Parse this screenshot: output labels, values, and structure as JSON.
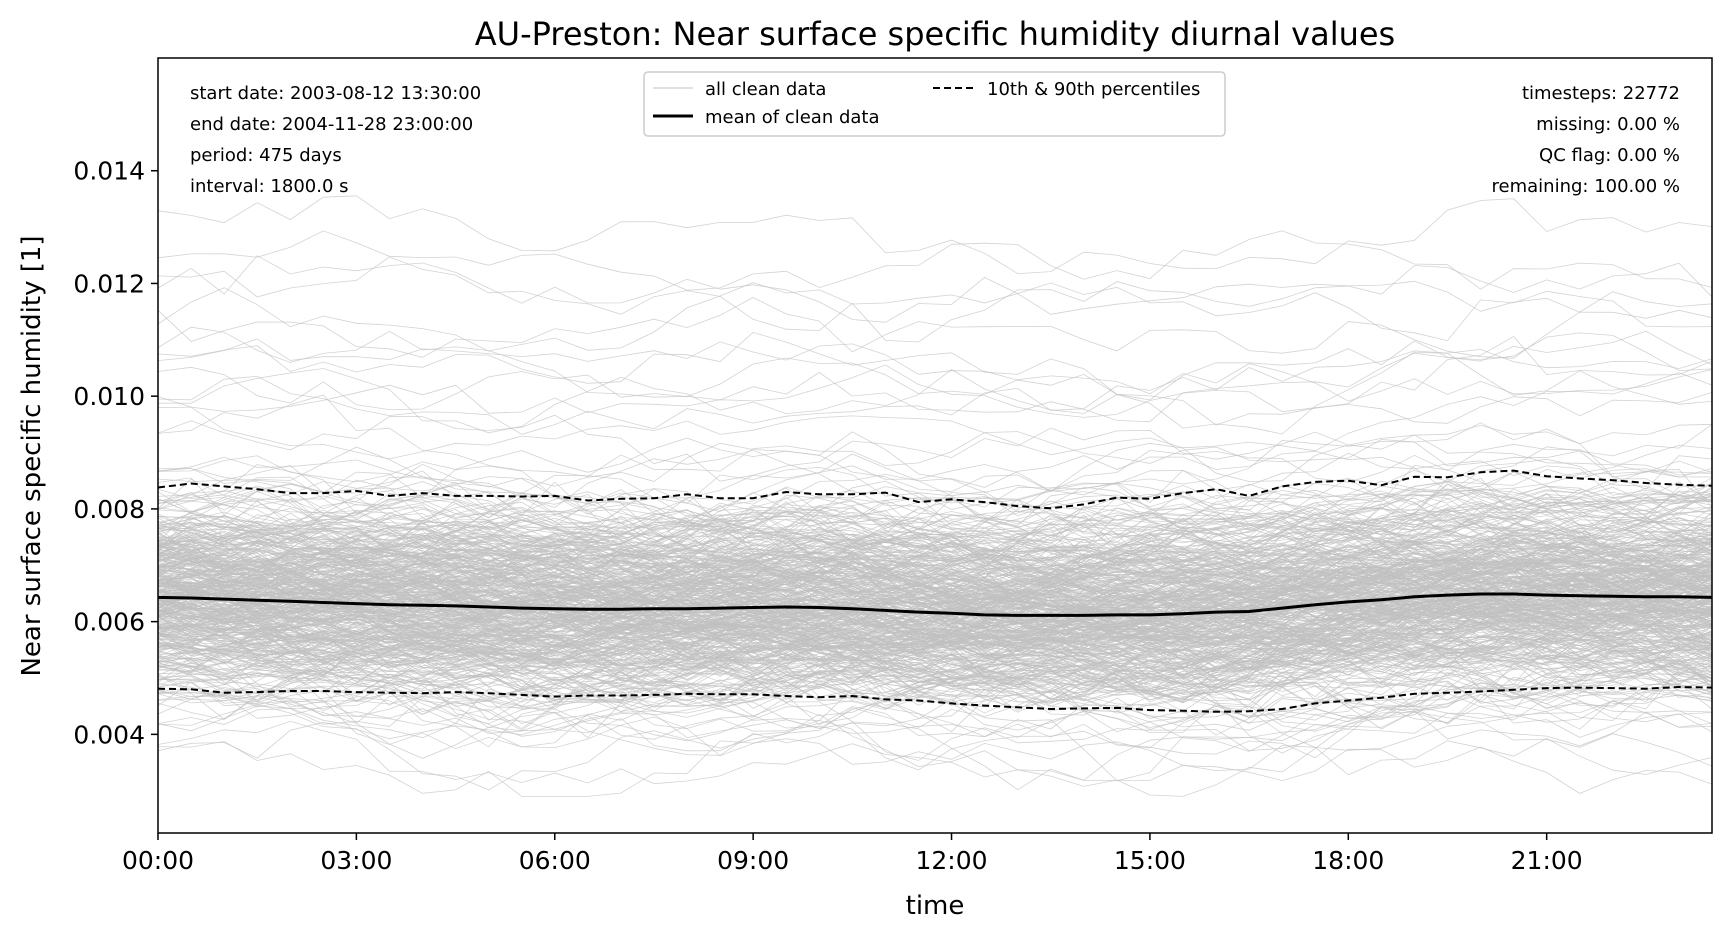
{
  "chart_data": {
    "type": "line",
    "title": "AU-Preston: Near surface specific humidity diurnal values",
    "xlabel": "time",
    "ylabel": "Near surface specific humidity [1]",
    "xlim": [
      0,
      23.5
    ],
    "ylim": [
      0.00225,
      0.016
    ],
    "grid": false,
    "x_ticks": [
      {
        "value": 0,
        "label": "00:00"
      },
      {
        "value": 3,
        "label": "03:00"
      },
      {
        "value": 6,
        "label": "06:00"
      },
      {
        "value": 9,
        "label": "09:00"
      },
      {
        "value": 12,
        "label": "12:00"
      },
      {
        "value": 15,
        "label": "15:00"
      },
      {
        "value": 18,
        "label": "18:00"
      },
      {
        "value": 21,
        "label": "21:00"
      }
    ],
    "y_ticks": [
      {
        "value": 0.004,
        "label": "0.004"
      },
      {
        "value": 0.006,
        "label": "0.006"
      },
      {
        "value": 0.008,
        "label": "0.008"
      },
      {
        "value": 0.01,
        "label": "0.010"
      },
      {
        "value": 0.012,
        "label": "0.012"
      },
      {
        "value": 0.014,
        "label": "0.014"
      }
    ],
    "legend": {
      "placement": "top-center",
      "entries": [
        {
          "label": "all clean data",
          "color": "#c0c0c0",
          "style": "thin"
        },
        {
          "label": "mean of clean data",
          "color": "#000000",
          "style": "solid"
        },
        {
          "label": "10th & 90th percentiles",
          "color": "#000000",
          "style": "dashed"
        }
      ]
    },
    "info_left": [
      "start date: 2003-08-12 13:30:00",
      "end date: 2004-11-28 23:00:00",
      "period: 475 days",
      "interval: 1800.0 s"
    ],
    "info_right": [
      "timesteps: 22772",
      "missing: 0.00 %",
      "QC flag: 0.00 %",
      "remaining: 100.00 %"
    ],
    "background_lines": {
      "count": 475,
      "color": "#c0c0c0",
      "seed": 7
    },
    "x": [
      0,
      0.5,
      1,
      1.5,
      2,
      2.5,
      3,
      3.5,
      4,
      4.5,
      5,
      5.5,
      6,
      6.5,
      7,
      7.5,
      8,
      8.5,
      9,
      9.5,
      10,
      10.5,
      11,
      11.5,
      12,
      12.5,
      13,
      13.5,
      14,
      14.5,
      15,
      15.5,
      16,
      16.5,
      17,
      17.5,
      18,
      18.5,
      19,
      19.5,
      20,
      20.5,
      21,
      21.5,
      22,
      22.5,
      23,
      23.5
    ],
    "series": [
      {
        "name": "mean of clean data",
        "color": "#000000",
        "style": "solid",
        "values": [
          0.00643,
          0.00642,
          0.0064,
          0.00638,
          0.00636,
          0.00634,
          0.00632,
          0.0063,
          0.00629,
          0.00628,
          0.00626,
          0.00624,
          0.00623,
          0.00622,
          0.00622,
          0.00623,
          0.00623,
          0.00624,
          0.00625,
          0.00626,
          0.00625,
          0.00623,
          0.0062,
          0.00617,
          0.00615,
          0.00612,
          0.00611,
          0.00611,
          0.00611,
          0.00612,
          0.00612,
          0.00614,
          0.00617,
          0.00618,
          0.00624,
          0.0063,
          0.00635,
          0.00639,
          0.00644,
          0.00647,
          0.00649,
          0.00649,
          0.00647,
          0.00646,
          0.00645,
          0.00644,
          0.00644,
          0.00643
        ]
      },
      {
        "name": "10th percentile",
        "color": "#000000",
        "style": "dashed",
        "values": [
          0.00481,
          0.0048,
          0.00474,
          0.00475,
          0.00477,
          0.00477,
          0.00475,
          0.00474,
          0.00473,
          0.00475,
          0.00473,
          0.0047,
          0.00467,
          0.00469,
          0.00469,
          0.0047,
          0.00472,
          0.00471,
          0.00471,
          0.00468,
          0.00466,
          0.00468,
          0.00462,
          0.0046,
          0.00455,
          0.00451,
          0.00448,
          0.00445,
          0.00446,
          0.00447,
          0.00443,
          0.00442,
          0.0044,
          0.00441,
          0.00445,
          0.00455,
          0.0046,
          0.00465,
          0.00472,
          0.00474,
          0.00476,
          0.00479,
          0.00482,
          0.00483,
          0.00482,
          0.00481,
          0.00484,
          0.00483
        ]
      },
      {
        "name": "90th percentile",
        "color": "#000000",
        "style": "dashed",
        "values": [
          0.00838,
          0.00845,
          0.0084,
          0.00835,
          0.00828,
          0.00828,
          0.00832,
          0.00823,
          0.00828,
          0.00823,
          0.00823,
          0.00822,
          0.00823,
          0.00815,
          0.00818,
          0.00819,
          0.00826,
          0.00819,
          0.00819,
          0.0083,
          0.00826,
          0.00826,
          0.00829,
          0.00812,
          0.00817,
          0.00812,
          0.00805,
          0.00801,
          0.00808,
          0.0082,
          0.00818,
          0.00828,
          0.00835,
          0.00823,
          0.0084,
          0.00848,
          0.0085,
          0.00842,
          0.00857,
          0.00856,
          0.00865,
          0.00868,
          0.00858,
          0.00854,
          0.00851,
          0.00846,
          0.00843,
          0.00841
        ]
      }
    ]
  }
}
